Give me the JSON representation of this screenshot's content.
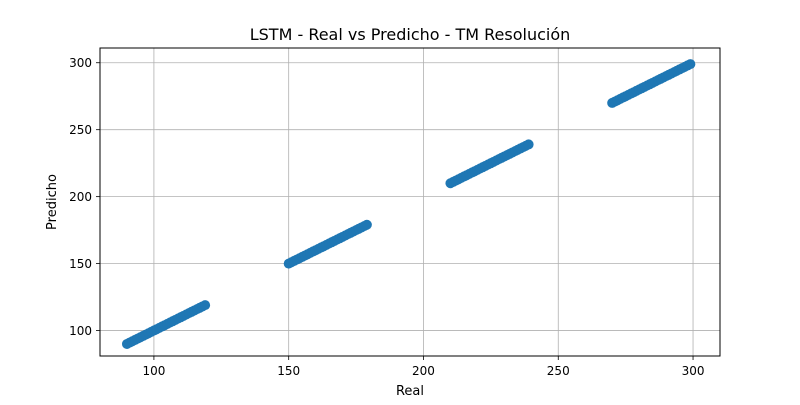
{
  "chart_data": {
    "type": "scatter",
    "title": "LSTM - Real vs Predicho - TM Resolución",
    "xlabel": "Real",
    "ylabel": "Predicho",
    "xlim": [
      80,
      310
    ],
    "ylim": [
      81,
      311
    ],
    "xticks": [
      100,
      150,
      200,
      250,
      300
    ],
    "yticks": [
      100,
      150,
      200,
      250,
      300
    ],
    "grid": true,
    "marker_color": "#1f77b4",
    "series": [
      {
        "clusters": [
          {
            "x_start": 90,
            "x_end": 119,
            "y_start": 90,
            "y_end": 119
          },
          {
            "x_start": 150,
            "x_end": 179,
            "y_start": 150,
            "y_end": 179
          },
          {
            "x_start": 210,
            "x_end": 239,
            "y_start": 210,
            "y_end": 239
          },
          {
            "x_start": 270,
            "x_end": 299,
            "y_start": 270,
            "y_end": 299
          }
        ]
      }
    ]
  }
}
